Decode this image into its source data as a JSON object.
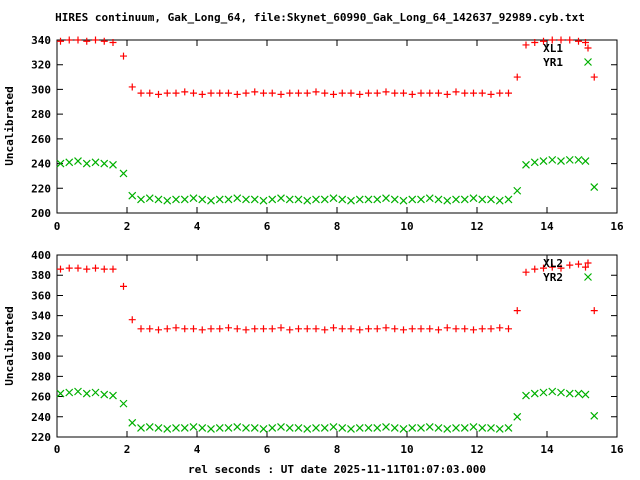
{
  "title": "HIRES continuum, Gak_Long_64, file:Skynet_60990_Gak_Long_64_142637_92989.cyb.txt",
  "xlabel": "rel seconds : UT date 2025-11-11T01:07:03.000",
  "chart_data": [
    {
      "type": "scatter",
      "ylabel": "Uncalibrated",
      "xlim": [
        0,
        16
      ],
      "ylim": [
        200,
        340
      ],
      "xticks": [
        0,
        2,
        4,
        6,
        8,
        10,
        12,
        14,
        16
      ],
      "yticks": [
        200,
        220,
        240,
        260,
        280,
        300,
        320,
        340
      ],
      "grid": false,
      "legend_position": "top-right-inside",
      "x": [
        0.1,
        0.35,
        0.6,
        0.85,
        1.1,
        1.35,
        1.6,
        1.9,
        2.15,
        2.4,
        2.65,
        2.9,
        3.15,
        3.4,
        3.65,
        3.9,
        4.15,
        4.4,
        4.65,
        4.9,
        5.15,
        5.4,
        5.65,
        5.9,
        6.15,
        6.4,
        6.65,
        6.9,
        7.15,
        7.4,
        7.65,
        7.9,
        8.15,
        8.4,
        8.65,
        8.9,
        9.15,
        9.4,
        9.65,
        9.9,
        10.15,
        10.4,
        10.65,
        10.9,
        11.15,
        11.4,
        11.65,
        11.9,
        12.15,
        12.4,
        12.65,
        12.9,
        13.15,
        13.4,
        13.65,
        13.9,
        14.15,
        14.4,
        14.65,
        14.9,
        15.1,
        15.35
      ],
      "series": [
        {
          "name": "XL1",
          "marker": "plus",
          "color": "#ff0000",
          "values": [
            339,
            340,
            340,
            339,
            340,
            339,
            338,
            327,
            302,
            297,
            297,
            296,
            297,
            297,
            298,
            297,
            296,
            297,
            297,
            297,
            296,
            297,
            298,
            297,
            297,
            296,
            297,
            297,
            297,
            298,
            297,
            296,
            297,
            297,
            296,
            297,
            297,
            298,
            297,
            297,
            296,
            297,
            297,
            297,
            296,
            298,
            297,
            297,
            297,
            296,
            297,
            297,
            310,
            336,
            338,
            339,
            340,
            340,
            340,
            339,
            338,
            310
          ]
        },
        {
          "name": "YR1",
          "marker": "cross",
          "color": "#00b000",
          "values": [
            240,
            241,
            242,
            240,
            241,
            240,
            239,
            232,
            214,
            211,
            212,
            211,
            210,
            211,
            211,
            212,
            211,
            210,
            211,
            211,
            212,
            211,
            211,
            210,
            211,
            212,
            211,
            211,
            210,
            211,
            211,
            212,
            211,
            210,
            211,
            211,
            211,
            212,
            211,
            210,
            211,
            211,
            212,
            211,
            210,
            211,
            211,
            212,
            211,
            211,
            210,
            211,
            218,
            239,
            241,
            242,
            243,
            242,
            243,
            243,
            242,
            221
          ]
        }
      ]
    },
    {
      "type": "scatter",
      "ylabel": "Uncalibrated",
      "xlim": [
        0,
        16
      ],
      "ylim": [
        220,
        400
      ],
      "xticks": [
        0,
        2,
        4,
        6,
        8,
        10,
        12,
        14,
        16
      ],
      "yticks": [
        220,
        240,
        260,
        280,
        300,
        320,
        340,
        360,
        380,
        400
      ],
      "grid": false,
      "legend_position": "top-right-inside",
      "x": [
        0.1,
        0.35,
        0.6,
        0.85,
        1.1,
        1.35,
        1.6,
        1.9,
        2.15,
        2.4,
        2.65,
        2.9,
        3.15,
        3.4,
        3.65,
        3.9,
        4.15,
        4.4,
        4.65,
        4.9,
        5.15,
        5.4,
        5.65,
        5.9,
        6.15,
        6.4,
        6.65,
        6.9,
        7.15,
        7.4,
        7.65,
        7.9,
        8.15,
        8.4,
        8.65,
        8.9,
        9.15,
        9.4,
        9.65,
        9.9,
        10.15,
        10.4,
        10.65,
        10.9,
        11.15,
        11.4,
        11.65,
        11.9,
        12.15,
        12.4,
        12.65,
        12.9,
        13.15,
        13.4,
        13.65,
        13.9,
        14.15,
        14.4,
        14.65,
        14.9,
        15.1,
        15.35
      ],
      "series": [
        {
          "name": "XL2",
          "marker": "plus",
          "color": "#ff0000",
          "values": [
            386,
            387,
            387,
            386,
            387,
            386,
            386,
            369,
            336,
            327,
            327,
            326,
            327,
            328,
            327,
            327,
            326,
            327,
            327,
            328,
            327,
            326,
            327,
            327,
            327,
            328,
            326,
            327,
            327,
            327,
            326,
            328,
            327,
            327,
            326,
            327,
            327,
            328,
            327,
            326,
            327,
            327,
            327,
            326,
            328,
            327,
            327,
            326,
            327,
            327,
            328,
            327,
            345,
            383,
            386,
            387,
            388,
            387,
            390,
            391,
            388,
            345
          ]
        },
        {
          "name": "YR2",
          "marker": "cross",
          "color": "#00b000",
          "values": [
            263,
            264,
            265,
            263,
            264,
            262,
            261,
            253,
            234,
            229,
            230,
            229,
            228,
            229,
            229,
            230,
            229,
            228,
            229,
            229,
            230,
            229,
            229,
            228,
            229,
            230,
            229,
            229,
            228,
            229,
            229,
            230,
            229,
            228,
            229,
            229,
            229,
            230,
            229,
            228,
            229,
            229,
            230,
            229,
            228,
            229,
            229,
            230,
            229,
            229,
            228,
            229,
            240,
            261,
            263,
            264,
            265,
            264,
            263,
            263,
            262,
            241
          ]
        }
      ]
    }
  ]
}
